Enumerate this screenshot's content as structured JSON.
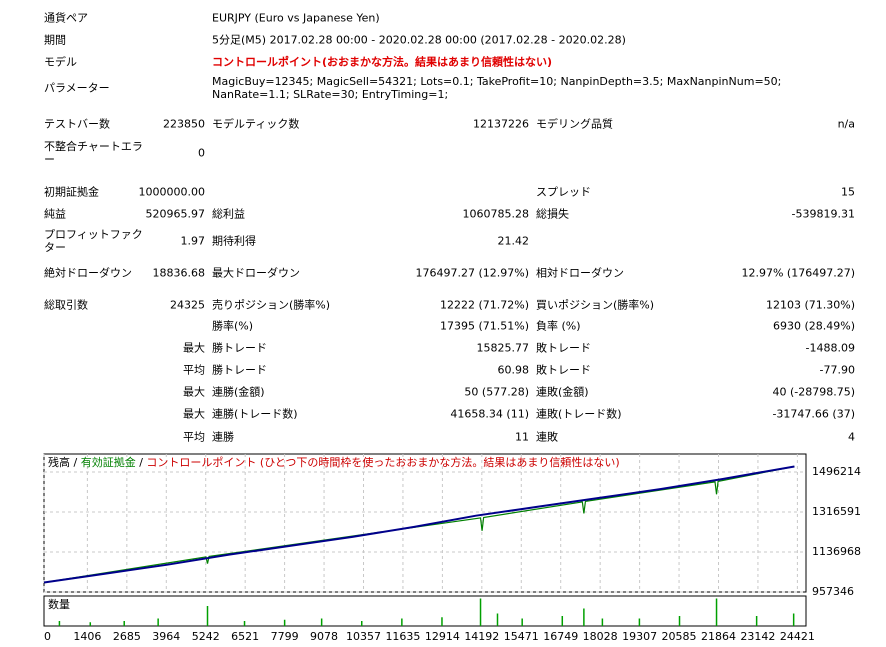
{
  "report": {
    "info": [
      [
        "通貨ペア",
        "EURJPY (Euro vs Japanese Yen)"
      ],
      [
        "期間",
        "5分足(M5) 2017.02.28 00:00 - 2020.02.28 00:00 (2017.02.28 - 2020.02.28)"
      ],
      [
        "モデル",
        "コントロールポイント(おおまかな方法。結果はあまり信頼性はない)"
      ],
      [
        "パラメーター",
        "MagicBuy=12345; MagicSell=54321; Lots=0.1; TakeProfit=10; NanpinDepth=3.5; MaxNanpinNum=50; NanRate=1.1; SLRate=30; EntryTiming=1;"
      ]
    ],
    "stats": [
      [
        "テストバー数",
        "223850",
        "モデルティック数",
        "12137226",
        "モデリング品質",
        "n/a"
      ],
      [
        "不整合チャートエラー",
        "0",
        null,
        null,
        null,
        null
      ],
      [
        "初期証拠金",
        "1000000.00",
        null,
        null,
        "スプレッド",
        "15"
      ],
      [
        "純益",
        "520965.97",
        "総利益",
        "1060785.28",
        "総損失",
        "-539819.31"
      ],
      [
        "プロフィットファクター",
        "1.97",
        "期待利得",
        "21.42",
        null,
        null
      ],
      [
        "絶対ドローダウン",
        "18836.68",
        "最大ドローダウン",
        "176497.27 (12.97%)",
        "相対ドローダウン",
        "12.97% (176497.27)"
      ],
      [
        "総取引数",
        "24325",
        "売りポジション(勝率%)",
        "12222 (71.72%)",
        "買いポジション(勝率%)",
        "12103 (71.30%)"
      ],
      [
        null,
        null,
        "勝率(%)",
        "17395 (71.51%)",
        "負率 (%)",
        "6930 (28.49%)"
      ],
      [
        null,
        "最大",
        "勝トレード",
        "15825.77",
        "敗トレード",
        "-1488.09"
      ],
      [
        null,
        "平均",
        "勝トレード",
        "60.98",
        "敗トレード",
        "-77.90"
      ],
      [
        null,
        "最大",
        "連勝(金額)",
        "50 (577.28)",
        "連敗(金額)",
        "40 (-28798.75)"
      ],
      [
        null,
        "最大",
        "連勝(トレード数)",
        "41658.34 (11)",
        "連敗(トレード数)",
        "-31747.66 (37)"
      ],
      [
        null,
        "平均",
        "連勝",
        "11",
        "連敗",
        "4"
      ]
    ]
  },
  "chart_data": {
    "type": "line",
    "legend": [
      {
        "text": "残高",
        "color": "#000000"
      },
      {
        "text": " / ",
        "color": "#000000"
      },
      {
        "text": "有効証拠金",
        "color": "#008000"
      },
      {
        "text": " / ",
        "color": "#000000"
      },
      {
        "text": "コントロールポイント (ひとつ下の時間枠を使ったおおまかな方法。結果はあまり信頼性はない)",
        "color": "#cc0000"
      }
    ],
    "xlim": [
      0,
      24700
    ],
    "xticks": [
      0,
      1406,
      2685,
      3964,
      5242,
      6521,
      7799,
      9078,
      10357,
      11635,
      12914,
      14192,
      15471,
      16749,
      18028,
      19307,
      20585,
      21864,
      23142,
      24421
    ],
    "ylim": [
      957346,
      1577044
    ],
    "yticks": [
      957346,
      1136968,
      1316591,
      1496214
    ],
    "series": [
      {
        "name": "残高",
        "color": "#00008b",
        "x": [
          0,
          2000,
          4000,
          6000,
          8000,
          10000,
          12000,
          14000,
          16000,
          18000,
          20000,
          22000,
          24325
        ],
        "values": [
          1000000,
          1040000,
          1080000,
          1125000,
          1165000,
          1205000,
          1250000,
          1300000,
          1340000,
          1380000,
          1420000,
          1465000,
          1520966
        ]
      },
      {
        "name": "有効証拠金",
        "color": "#008000",
        "x": [
          0,
          5250,
          5300,
          5350,
          14150,
          14200,
          14250,
          17450,
          17500,
          17550,
          21750,
          21800,
          21850,
          24325
        ],
        "values": [
          1000000,
          1115000,
          1085000,
          1117000,
          1290000,
          1232000,
          1292000,
          1362000,
          1310000,
          1364000,
          1452000,
          1396000,
          1454000,
          1520966
        ]
      }
    ],
    "volume": {
      "label": "数量",
      "ylim": [
        0,
        1.2
      ],
      "x": [
        500,
        1500,
        2600,
        3700,
        5300,
        6500,
        7800,
        9000,
        10300,
        11600,
        12900,
        14150,
        14700,
        15500,
        16800,
        17500,
        18100,
        19300,
        20600,
        21800,
        23100,
        24300
      ],
      "values": [
        0.2,
        0.15,
        0.2,
        0.3,
        0.8,
        0.2,
        0.25,
        0.3,
        0.2,
        0.3,
        0.35,
        1.1,
        0.5,
        0.3,
        0.4,
        0.7,
        0.3,
        0.3,
        0.4,
        1.1,
        0.4,
        0.5
      ]
    }
  }
}
